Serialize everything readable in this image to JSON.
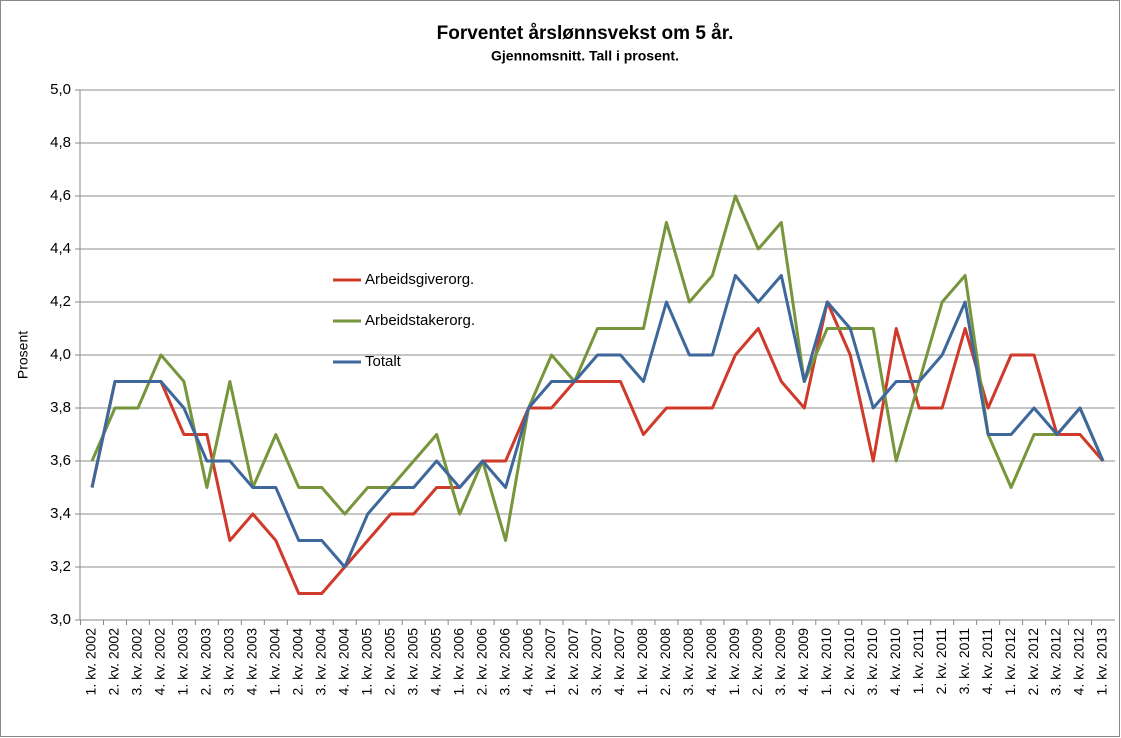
{
  "chart_data": {
    "type": "line",
    "title": "Forventet årslønnsvekst om 5 år.",
    "subtitle": "Gjennomsnitt. Tall i prosent.",
    "ylabel": "Prosent",
    "categories": [
      "1. kv. 2002",
      "2. kv. 2002",
      "3. kv. 2002",
      "4. kv. 2002",
      "1. kv. 2003",
      "2. kv. 2003",
      "3. kv. 2003",
      "4. kv. 2003",
      "1. kv. 2004",
      "2. kv. 2004",
      "3. kv. 2004",
      "4. kv. 2004",
      "1. kv. 2005",
      "2. kv. 2005",
      "3. kv. 2005",
      "4. kv. 2005",
      "1. kv. 2006",
      "2. kv. 2006",
      "3. kv. 2006",
      "4. kv. 2006",
      "1. kv. 2007",
      "2. kv. 2007",
      "3. kv. 2007",
      "4. kv. 2007",
      "1. kv. 2008",
      "2. kv. 2008",
      "3. kv. 2008",
      "4. kv. 2008",
      "1. kv. 2009",
      "2. kv. 2009",
      "3. kv. 2009",
      "4. kv. 2009",
      "1. kv. 2010",
      "2. kv. 2010",
      "3. kv. 2010",
      "4. kv. 2010",
      "1. kv. 2011",
      "2. kv. 2011",
      "3. kv. 2011",
      "4. kv. 2011",
      "1. kv. 2012",
      "2. kv. 2012",
      "3. kv. 2012",
      "4. kv. 2012",
      "1. kv. 2013"
    ],
    "series": [
      {
        "name": "Arbeidsgiverorg.",
        "color": "#d03a2a",
        "values": [
          3.5,
          3.9,
          3.9,
          3.9,
          3.7,
          3.7,
          3.3,
          3.4,
          3.3,
          3.1,
          3.1,
          3.2,
          3.3,
          3.4,
          3.4,
          3.5,
          3.5,
          3.6,
          3.6,
          3.8,
          3.8,
          3.9,
          3.9,
          3.9,
          3.7,
          3.8,
          3.8,
          3.8,
          4.0,
          4.1,
          3.9,
          3.8,
          4.2,
          4.0,
          3.6,
          4.1,
          3.8,
          3.8,
          4.1,
          3.8,
          4.0,
          4.0,
          3.7,
          3.7,
          3.6
        ]
      },
      {
        "name": "Arbeidstakerorg.",
        "color": "#77963c",
        "values": [
          3.6,
          3.8,
          3.8,
          4.0,
          3.9,
          3.5,
          3.9,
          3.5,
          3.7,
          3.5,
          3.5,
          3.4,
          3.5,
          3.5,
          3.6,
          3.7,
          3.4,
          3.6,
          3.3,
          3.8,
          4.0,
          3.9,
          4.1,
          4.1,
          4.1,
          4.5,
          4.2,
          4.3,
          4.6,
          4.4,
          4.5,
          3.9,
          4.1,
          4.1,
          4.1,
          3.6,
          3.9,
          4.2,
          4.3,
          3.7,
          3.5,
          3.7,
          3.7,
          3.8,
          3.6
        ]
      },
      {
        "name": "Totalt",
        "color": "#3e689c",
        "values": [
          3.5,
          3.9,
          3.9,
          3.9,
          3.8,
          3.6,
          3.6,
          3.5,
          3.5,
          3.3,
          3.3,
          3.2,
          3.4,
          3.5,
          3.5,
          3.6,
          3.5,
          3.6,
          3.5,
          3.8,
          3.9,
          3.9,
          4.0,
          4.0,
          3.9,
          4.2,
          4.0,
          4.0,
          4.3,
          4.2,
          4.3,
          3.9,
          4.2,
          4.1,
          3.8,
          3.9,
          3.9,
          4.0,
          4.2,
          3.7,
          3.7,
          3.8,
          3.7,
          3.8,
          3.6
        ]
      }
    ],
    "ylim": [
      3.0,
      5.0
    ],
    "yticks": [
      {
        "value": 3.0,
        "label": "3,0"
      },
      {
        "value": 3.2,
        "label": "3,2"
      },
      {
        "value": 3.4,
        "label": "3,4"
      },
      {
        "value": 3.6,
        "label": "3,6"
      },
      {
        "value": 3.8,
        "label": "3,8"
      },
      {
        "value": 4.0,
        "label": "4,0"
      },
      {
        "value": 4.2,
        "label": "4,2"
      },
      {
        "value": 4.4,
        "label": "4,4"
      },
      {
        "value": 4.6,
        "label": "4,6"
      },
      {
        "value": 4.8,
        "label": "4,8"
      },
      {
        "value": 5.0,
        "label": "5,0"
      }
    ],
    "grid": true,
    "legend": "left"
  }
}
